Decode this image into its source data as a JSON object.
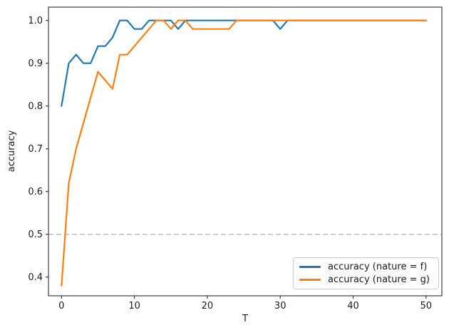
{
  "figure": {
    "xlabel": "T",
    "ylabel": "accuracy",
    "background": "#ffffff",
    "spine_color": "#2b2b2b"
  },
  "chart_data": {
    "type": "line",
    "title": "",
    "xlabel": "T",
    "ylabel": "accuracy",
    "grid": false,
    "legend_position": "lower right",
    "xlim": [
      -1.79,
      52.17
    ],
    "ylim": [
      0.3562,
      1.0312
    ],
    "xticks": [
      0,
      10,
      20,
      30,
      40,
      50
    ],
    "ytick_labels": [
      "0.4",
      "0.5",
      "0.6",
      "0.7",
      "0.8",
      "0.9",
      "1.0"
    ],
    "yticks": [
      0.4,
      0.5,
      0.6,
      0.7,
      0.8,
      0.9,
      1.0
    ],
    "threshold_line": {
      "y": 0.5,
      "style": "dashed",
      "color": "#b0b0b0"
    },
    "x": [
      0,
      1,
      2,
      3,
      4,
      5,
      6,
      7,
      8,
      9,
      10,
      11,
      12,
      13,
      14,
      15,
      16,
      17,
      18,
      19,
      20,
      21,
      22,
      23,
      24,
      25,
      26,
      27,
      28,
      29,
      30,
      31,
      32,
      33,
      34,
      35,
      36,
      37,
      38,
      39,
      40,
      41,
      42,
      43,
      44,
      45,
      46,
      47,
      48,
      49,
      50
    ],
    "series": [
      {
        "name": "accuracy (nature = f)",
        "color": "#1f77b4",
        "values": [
          0.8,
          0.9,
          0.92,
          0.9,
          0.9,
          0.94,
          0.94,
          0.96,
          1.0,
          1.0,
          0.98,
          0.98,
          1.0,
          1.0,
          1.0,
          1.0,
          0.98,
          1.0,
          1.0,
          1.0,
          1.0,
          1.0,
          1.0,
          1.0,
          1.0,
          1.0,
          1.0,
          1.0,
          1.0,
          1.0,
          0.98,
          1.0,
          1.0,
          1.0,
          1.0,
          1.0,
          1.0,
          1.0,
          1.0,
          1.0,
          1.0,
          1.0,
          1.0,
          1.0,
          1.0,
          1.0,
          1.0,
          1.0,
          1.0,
          1.0,
          1.0
        ]
      },
      {
        "name": "accuracy (nature = g)",
        "color": "#ff7f0e",
        "values": [
          0.38,
          0.62,
          0.7,
          0.76,
          0.82,
          0.88,
          0.86,
          0.84,
          0.92,
          0.92,
          0.94,
          0.96,
          0.98,
          1.0,
          1.0,
          0.98,
          1.0,
          1.0,
          0.98,
          0.98,
          0.98,
          0.98,
          0.98,
          0.98,
          1.0,
          1.0,
          1.0,
          1.0,
          1.0,
          1.0,
          1.0,
          1.0,
          1.0,
          1.0,
          1.0,
          1.0,
          1.0,
          1.0,
          1.0,
          1.0,
          1.0,
          1.0,
          1.0,
          1.0,
          1.0,
          1.0,
          1.0,
          1.0,
          1.0,
          1.0,
          1.0
        ]
      }
    ]
  },
  "legend": {
    "items": [
      {
        "label": "accuracy (nature = f)",
        "color": "#1f77b4"
      },
      {
        "label": "accuracy (nature = g)",
        "color": "#ff7f0e"
      }
    ]
  }
}
